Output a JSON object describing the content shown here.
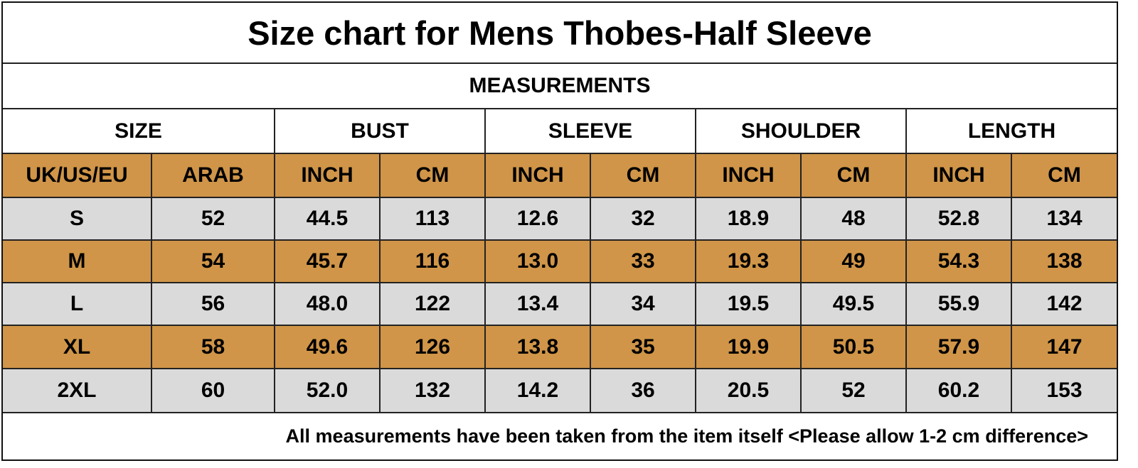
{
  "title": "Size chart for Mens Thobes-Half Sleeve",
  "subtitle": "MEASUREMENTS",
  "table": {
    "groups": [
      "SIZE",
      "BUST",
      "SLEEVE",
      "SHOULDER",
      "LENGTH"
    ],
    "units": [
      "UK/US/EU",
      "ARAB",
      "INCH",
      "CM",
      "INCH",
      "CM",
      "INCH",
      "CM",
      "INCH",
      "CM"
    ],
    "rows": [
      [
        "S",
        "52",
        "44.5",
        "113",
        "12.6",
        "32",
        "18.9",
        "48",
        "52.8",
        "134"
      ],
      [
        "M",
        "54",
        "45.7",
        "116",
        "13.0",
        "33",
        "19.3",
        "49",
        "54.3",
        "138"
      ],
      [
        "L",
        "56",
        "48.0",
        "122",
        "13.4",
        "34",
        "19.5",
        "49.5",
        "55.9",
        "142"
      ],
      [
        "XL",
        "58",
        "49.6",
        "126",
        "13.8",
        "35",
        "19.9",
        "50.5",
        "57.9",
        "147"
      ],
      [
        "2XL",
        "60",
        "52.0",
        "132",
        "14.2",
        "36",
        "20.5",
        "52",
        "60.2",
        "153"
      ]
    ]
  },
  "footer": "All measurements have been taken from the item itself <Please allow 1-2 cm difference>"
}
